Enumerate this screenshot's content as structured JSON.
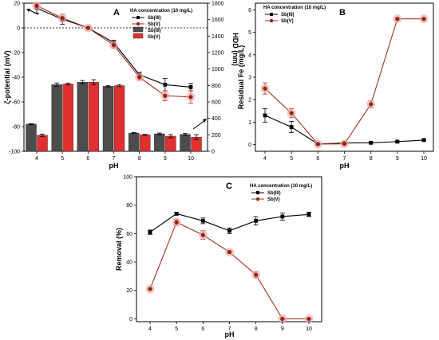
{
  "colors": {
    "sb3": "#000000",
    "sb5": "#a8301f",
    "sb5_marker": "#8b2a12",
    "sb5_glow": "#f2a6a6",
    "bar_sb3": "#4d4d4d",
    "bar_sb5": "#e03030"
  },
  "chart_data": [
    {
      "panel": "A",
      "type": "bar+line",
      "legend_title": "HA concentration (10 mg/L)",
      "legend": [
        "Sb(III)",
        "Sb(V)",
        "Sb(III)",
        "Sb(V)"
      ],
      "xlabel": "pH",
      "ylabel_left": "ζ-potential (mV)",
      "ylabel_right": "HDD (nm)",
      "x": [
        4,
        5,
        6,
        7,
        8,
        9,
        10
      ],
      "ylim_left": [
        -100,
        20
      ],
      "yticks_left": [
        20,
        0,
        -20,
        -40,
        -60,
        -80,
        -100
      ],
      "ylim_right": [
        0,
        1800
      ],
      "yticks_right": [
        0,
        200,
        400,
        600,
        800,
        1000,
        1200,
        1400,
        1600,
        1800
      ],
      "zeta_series": [
        {
          "name": "Sb(III)",
          "values": [
            16,
            7,
            0,
            -12,
            -38,
            -46,
            -48
          ],
          "errors": [
            4,
            4,
            1,
            2,
            2,
            5,
            3
          ]
        },
        {
          "name": "Sb(V)",
          "values": [
            18,
            8,
            0,
            -14,
            -40,
            -55,
            -56
          ],
          "errors": [
            2,
            3,
            1,
            2,
            2,
            4,
            5
          ]
        }
      ],
      "hdd_series": [
        {
          "name": "Sb(III)",
          "values": [
            330,
            810,
            840,
            790,
            222,
            212,
            205
          ],
          "errors": [
            6,
            20,
            20,
            10,
            6,
            10,
            14
          ]
        },
        {
          "name": "Sb(V)",
          "values": [
            195,
            818,
            840,
            798,
            200,
            184,
            172
          ],
          "errors": [
            14,
            12,
            30,
            12,
            6,
            20,
            30
          ]
        }
      ]
    },
    {
      "panel": "B",
      "type": "line",
      "legend_title": "HA concentration (10 mg/L)",
      "legend": [
        "Sb(III)",
        "Sb(V)"
      ],
      "xlabel": "pH",
      "ylabel": "Residual Fe (mg/L)",
      "x": [
        4,
        5,
        6,
        7,
        8,
        9,
        10
      ],
      "ylim": [
        -0.3,
        6.3
      ],
      "yticks": [
        0,
        1,
        2,
        3,
        4,
        5,
        6
      ],
      "series": [
        {
          "name": "Sb(III)",
          "values": [
            1.3,
            0.78,
            0.02,
            0.07,
            0.08,
            0.13,
            0.2
          ],
          "errors": [
            0.3,
            0.25,
            0.03,
            0.04,
            0.02,
            0.03,
            0.03
          ]
        },
        {
          "name": "Sb(V)",
          "values": [
            2.5,
            1.4,
            0.02,
            0.03,
            1.8,
            5.6,
            5.6
          ],
          "errors": [
            0.25,
            0.2,
            0.03,
            0.03,
            0.15,
            0.05,
            0.05
          ]
        }
      ]
    },
    {
      "panel": "C",
      "type": "line",
      "legend_title": "HA concentration (10 mg/L)",
      "legend": [
        "Sb(III)",
        "Sb(V)"
      ],
      "xlabel": "pH",
      "ylabel": "Removal (%)",
      "x": [
        4,
        5,
        6,
        7,
        8,
        9,
        10
      ],
      "ylim": [
        -2,
        100
      ],
      "yticks": [
        0,
        20,
        40,
        60,
        80,
        100
      ],
      "series": [
        {
          "name": "Sb(III)",
          "values": [
            61,
            74,
            69,
            62,
            69,
            72,
            73.5
          ],
          "errors": [
            1.5,
            1,
            2,
            2,
            3,
            2.5,
            1.5
          ]
        },
        {
          "name": "Sb(V)",
          "values": [
            21,
            68,
            59,
            47,
            31,
            0,
            0
          ],
          "errors": [
            0.5,
            2,
            3,
            1,
            2,
            0.5,
            0.5
          ]
        }
      ]
    }
  ]
}
